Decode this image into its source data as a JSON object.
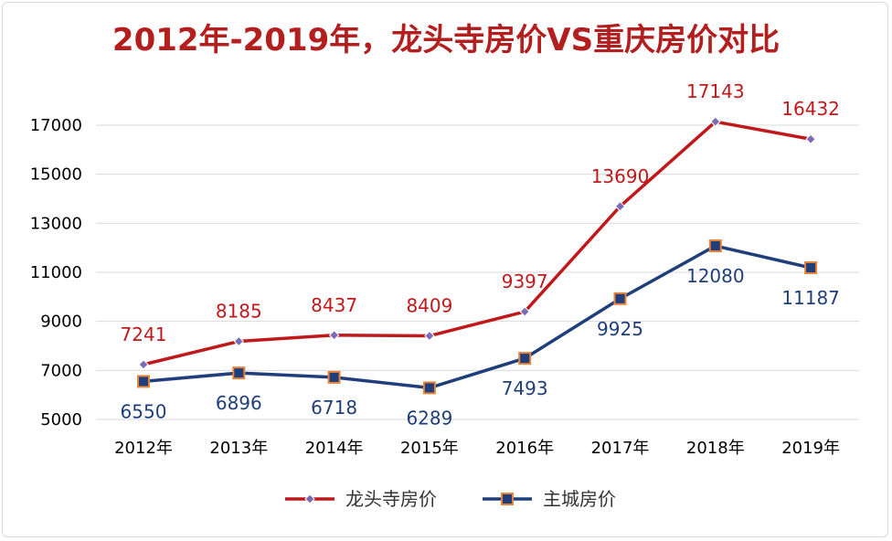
{
  "chart_data": {
    "type": "line",
    "title": "2012年-2019年，龙头寺房价VS重庆房价对比",
    "xlabel": "",
    "ylabel": "",
    "categories": [
      "2012年",
      "2013年",
      "2014年",
      "2015年",
      "2016年",
      "2017年",
      "2018年",
      "2019年"
    ],
    "ylim": [
      5000,
      17000
    ],
    "yticks": [
      5000,
      7000,
      9000,
      11000,
      13000,
      15000,
      17000
    ],
    "grid": true,
    "legend_position": "bottom",
    "series": [
      {
        "name": "龙头寺房价",
        "values": [
          7241,
          8185,
          8437,
          8409,
          9397,
          13690,
          17143,
          16432
        ],
        "color": "#c0191c",
        "marker": "diamond",
        "marker_fill": "#7b6bb5",
        "label_position": "above"
      },
      {
        "name": "主城房价",
        "values": [
          6550,
          6896,
          6718,
          6289,
          7493,
          9925,
          12080,
          11187
        ],
        "color": "#1f3e7a",
        "marker": "square",
        "marker_fill": "#1f3e7a",
        "marker_stroke": "#e8833a",
        "label_position": "below"
      }
    ]
  },
  "colors": {
    "title": "#b31e1e",
    "grid": "#d9d9d9",
    "red_label": "#c0191c",
    "blue_label": "#1f3e7a"
  }
}
